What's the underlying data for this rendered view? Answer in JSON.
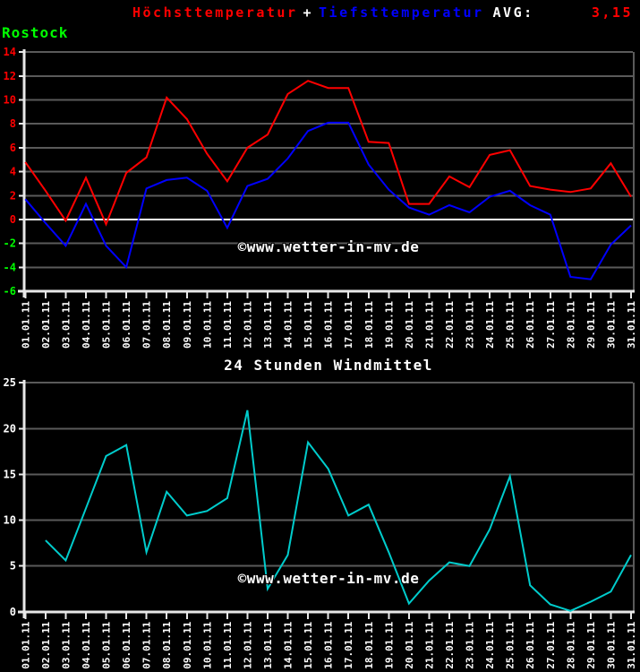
{
  "header": {
    "max_label": "Höchsttemperatur",
    "plus": "+",
    "min_label": "Tiefsttemperatur",
    "avg_label": "AVG:",
    "avg_value": "3,15",
    "station": "Rostock"
  },
  "watermark": "©www.wetter-in-mv.de",
  "colors": {
    "background": "#000000",
    "max_line": "#ff0000",
    "min_line": "#0000ff",
    "wind_line": "#00cccc",
    "station": "#00ff00",
    "grid": "#5a5a5a",
    "axis": "#e8e8e8",
    "zero_line": "#ffffff",
    "x_label": "#ffffff"
  },
  "chart_data": [
    {
      "type": "line",
      "title": "",
      "xlabel": "",
      "ylabel": "",
      "ylim": [
        -6,
        14
      ],
      "ytick_step": 2,
      "yticks": [
        14,
        12,
        10,
        8,
        6,
        4,
        2,
        0,
        -2,
        -4,
        -6
      ],
      "ytick_colors": {
        "positive": "#ff0000",
        "negative": "#00ff00"
      },
      "grid": true,
      "legend_position": "top-header",
      "x_labels": [
        "01.01.11",
        "02.01.11",
        "03.01.11",
        "04.01.11",
        "05.01.11",
        "06.01.11",
        "07.01.11",
        "08.01.11",
        "09.01.11",
        "10.01.11",
        "11.01.11",
        "12.01.11",
        "13.01.11",
        "14.01.11",
        "15.01.11",
        "16.01.11",
        "17.01.11",
        "18.01.11",
        "19.01.11",
        "20.01.11",
        "21.01.11",
        "22.01.11",
        "23.01.11",
        "24.01.11",
        "25.01.11",
        "26.01.11",
        "27.01.11",
        "28.01.11",
        "29.01.11",
        "30.01.11",
        "31.01.11"
      ],
      "series": [
        {
          "name": "Höchsttemperatur",
          "color": "#ff0000",
          "values": [
            4.8,
            2.4,
            -0.1,
            3.5,
            -0.4,
            3.9,
            5.2,
            10.2,
            8.4,
            5.5,
            3.2,
            6.0,
            7.1,
            10.5,
            11.6,
            11.0,
            11.0,
            6.5,
            6.4,
            1.3,
            1.3,
            3.6,
            2.7,
            5.4,
            5.8,
            2.8,
            2.5,
            2.3,
            2.6,
            4.7,
            1.9
          ]
        },
        {
          "name": "Tiefsttemperatur",
          "color": "#0000ff",
          "values": [
            1.7,
            -0.3,
            -2.2,
            1.3,
            -2.2,
            -4.0,
            2.6,
            3.3,
            3.5,
            2.4,
            -0.7,
            2.8,
            3.4,
            5.1,
            7.4,
            8.1,
            8.1,
            4.6,
            2.5,
            1.0,
            0.4,
            1.2,
            0.6,
            1.9,
            2.4,
            1.2,
            0.4,
            -4.8,
            -5.0,
            -2.1,
            -0.5
          ]
        }
      ]
    },
    {
      "type": "line",
      "title": "24 Stunden Windmittel",
      "xlabel": "",
      "ylabel": "",
      "ylim": [
        0,
        25
      ],
      "ytick_step": 5,
      "yticks": [
        25,
        20,
        15,
        10,
        5,
        0
      ],
      "ytick_colors": {
        "positive": "#ffffff",
        "negative": "#ffffff"
      },
      "grid": true,
      "x_labels": [
        "01.01.11",
        "02.01.11",
        "03.01.11",
        "04.01.11",
        "05.01.11",
        "06.01.11",
        "07.01.11",
        "08.01.11",
        "09.01.11",
        "10.01.11",
        "11.01.11",
        "12.01.11",
        "13.01.11",
        "14.01.11",
        "15.01.11",
        "16.01.11",
        "17.01.11",
        "18.01.11",
        "19.01.11",
        "20.01.11",
        "21.01.11",
        "22.01.11",
        "23.01.11",
        "24.01.11",
        "25.01.11",
        "26.01.11",
        "27.01.11",
        "28.01.11",
        "29.01.11",
        "30.01.11",
        "31.01.11"
      ],
      "series": [
        {
          "name": "Windmittel",
          "color": "#00cccc",
          "values": [
            null,
            7.8,
            5.6,
            11.3,
            17.0,
            18.2,
            6.5,
            13.1,
            10.5,
            11.0,
            12.4,
            22.0,
            2.5,
            6.2,
            18.5,
            15.6,
            10.5,
            11.7,
            6.5,
            0.9,
            3.4,
            5.4,
            5.0,
            9.0,
            14.8,
            2.9,
            0.8,
            0.1,
            1.1,
            2.2,
            6.2
          ]
        }
      ]
    }
  ]
}
